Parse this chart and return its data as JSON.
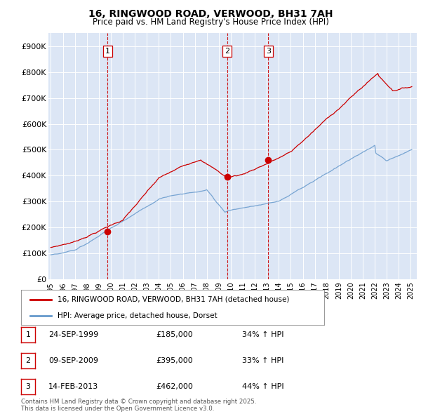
{
  "title": "16, RINGWOOD ROAD, VERWOOD, BH31 7AH",
  "subtitle": "Price paid vs. HM Land Registry's House Price Index (HPI)",
  "red_label": "16, RINGWOOD ROAD, VERWOOD, BH31 7AH (detached house)",
  "blue_label": "HPI: Average price, detached house, Dorset",
  "footer": "Contains HM Land Registry data © Crown copyright and database right 2025.\nThis data is licensed under the Open Government Licence v3.0.",
  "transactions": [
    {
      "num": 1,
      "date": "24-SEP-1999",
      "price": "£185,000",
      "change": "34% ↑ HPI",
      "year": 1999.73
    },
    {
      "num": 2,
      "date": "09-SEP-2009",
      "price": "£395,000",
      "change": "33% ↑ HPI",
      "year": 2009.69
    },
    {
      "num": 3,
      "date": "14-FEB-2013",
      "price": "£462,000",
      "change": "44% ↑ HPI",
      "year": 2013.12
    }
  ],
  "transaction_values": [
    185000,
    395000,
    462000
  ],
  "vline_color": "#cc0000",
  "background_color": "#ffffff",
  "plot_bg": "#dce6f5",
  "red_line_color": "#cc0000",
  "blue_line_color": "#6699cc",
  "ylim": [
    0,
    950000
  ],
  "yticks": [
    0,
    100000,
    200000,
    300000,
    400000,
    500000,
    600000,
    700000,
    800000,
    900000
  ],
  "ytick_labels": [
    "£0",
    "£100K",
    "£200K",
    "£300K",
    "£400K",
    "£500K",
    "£600K",
    "£700K",
    "£800K",
    "£900K"
  ],
  "xlim_start": 1994.8,
  "xlim_end": 2025.5
}
